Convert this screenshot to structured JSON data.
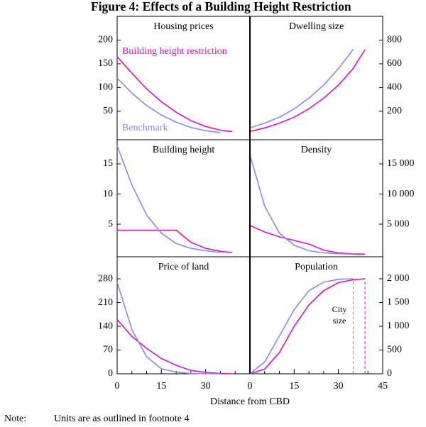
{
  "title": "Figure 4: Effects of a Building Height Restriction",
  "xlabel": "Distance from CBD",
  "note_label": "Note:",
  "note": "Units are as outlined in footnote 4",
  "chart_data": [
    {
      "type": "line",
      "title": "Housing prices",
      "yaxis_side": "left",
      "x": [
        0,
        5,
        10,
        15,
        20,
        25,
        30,
        35,
        39
      ],
      "xlim": [
        0,
        45
      ],
      "ylim": [
        -10,
        250
      ],
      "yticks": [
        50,
        100,
        150,
        200
      ],
      "series": [
        {
          "name": "Building height restriction",
          "color": "#e010c0",
          "values": [
            165,
            130,
            97,
            70,
            48,
            30,
            18,
            10,
            7
          ]
        },
        {
          "name": "Benchmark",
          "color": "#8888f0",
          "values": [
            120,
            88,
            62,
            42,
            27,
            16,
            9,
            5,
            null
          ]
        }
      ]
    },
    {
      "type": "line",
      "title": "Dwelling size",
      "yaxis_side": "right",
      "x": [
        0,
        5,
        10,
        15,
        20,
        25,
        30,
        35,
        39
      ],
      "xlim": [
        0,
        45
      ],
      "ylim": [
        -40,
        1000
      ],
      "yticks": [
        200,
        400,
        600,
        800
      ],
      "series": [
        {
          "color": "#e010c0",
          "values": [
            30,
            60,
            100,
            150,
            220,
            310,
            420,
            560,
            720
          ]
        },
        {
          "color": "#8888f0",
          "values": [
            60,
            100,
            150,
            220,
            310,
            420,
            560,
            720,
            null
          ]
        }
      ]
    },
    {
      "type": "line",
      "title": "Building height",
      "yaxis_side": "left",
      "x": [
        0,
        5,
        10,
        15,
        20,
        25,
        30,
        35,
        39
      ],
      "xlim": [
        0,
        45
      ],
      "ylim": [
        -0.4,
        19
      ],
      "yticks": [
        5,
        10,
        15
      ],
      "series": [
        {
          "color": "#e010c0",
          "values": [
            4,
            4,
            4,
            4,
            4,
            2,
            1,
            0.5,
            0.3
          ]
        },
        {
          "color": "#8888f0",
          "values": [
            18,
            11.5,
            6.5,
            3.5,
            1.8,
            1,
            0.6,
            0.3,
            null
          ]
        }
      ]
    },
    {
      "type": "line",
      "title": "Density",
      "yaxis_side": "right",
      "x": [
        0,
        5,
        10,
        15,
        20,
        25,
        30,
        35,
        39
      ],
      "xlim": [
        0,
        45
      ],
      "ylim": [
        -400,
        19000
      ],
      "yticks": [
        {
          "value": 5000,
          "label": "5 000"
        },
        {
          "value": 10000,
          "label": "10 000"
        },
        {
          "value": 15000,
          "label": "15 000"
        }
      ],
      "series": [
        {
          "color": "#e010c0",
          "values": [
            4800,
            3700,
            2900,
            2300,
            1700,
            700,
            250,
            80,
            30
          ]
        },
        {
          "color": "#8888f0",
          "values": [
            16500,
            8000,
            3500,
            1500,
            600,
            250,
            100,
            30,
            null
          ]
        }
      ]
    },
    {
      "type": "line",
      "title": "Price of land",
      "yaxis_side": "left",
      "x": [
        0,
        5,
        10,
        15,
        20,
        25,
        30,
        35,
        39
      ],
      "xlim": [
        0,
        45
      ],
      "ylim": [
        0,
        345
      ],
      "yticks": [
        0,
        70,
        140,
        210,
        280
      ],
      "xticks": [
        0,
        15,
        30
      ],
      "xminorticks": [
        5,
        10,
        20,
        25,
        35,
        40
      ],
      "series": [
        {
          "color": "#e010c0",
          "values": [
            160,
            110,
            75,
            45,
            25,
            10,
            4,
            1,
            0
          ]
        },
        {
          "color": "#8888f0",
          "values": [
            270,
            130,
            50,
            15,
            5,
            1,
            0,
            0,
            null
          ]
        }
      ]
    },
    {
      "type": "line",
      "title": "Population",
      "yaxis_side": "right",
      "x": [
        0,
        5,
        10,
        15,
        20,
        25,
        30,
        35,
        39
      ],
      "xlim": [
        0,
        45
      ],
      "ylim": [
        0,
        2463
      ],
      "yticks": [
        0,
        500,
        {
          "value": 1000,
          "label": "1 000"
        },
        {
          "value": 1500,
          "label": "1 500"
        },
        {
          "value": 2000,
          "label": "2 000"
        }
      ],
      "xticks": [
        0,
        15,
        30,
        45
      ],
      "xminorticks": [
        5,
        10,
        20,
        25,
        35,
        40
      ],
      "annotation_lines": [
        "City",
        "size"
      ],
      "vlines": [
        {
          "x": 35,
          "y": 2000,
          "color": "#8888f0"
        },
        {
          "x": 39,
          "y": 2000,
          "color": "#e010c0"
        }
      ],
      "series": [
        {
          "color": "#e010c0",
          "values": [
            0,
            100,
            450,
            1000,
            1450,
            1750,
            1920,
            1980,
            2000
          ]
        },
        {
          "color": "#8888f0",
          "values": [
            0,
            250,
            800,
            1350,
            1750,
            1930,
            1990,
            2000,
            null
          ]
        }
      ]
    }
  ]
}
